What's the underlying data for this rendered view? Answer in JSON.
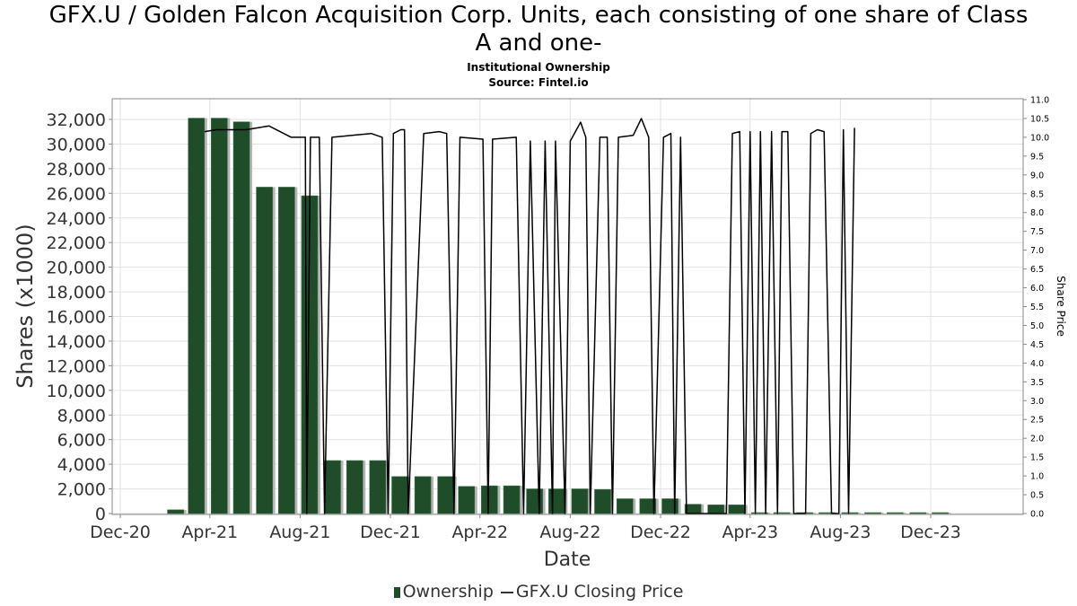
{
  "title_line1": "GFX.U / Golden Falcon Acquisition Corp. Units, each consisting of one share of Class",
  "title_line2": "A and one-",
  "subtitle1": "Institutional Ownership",
  "subtitle2": "Source: Fintel.io",
  "legend": {
    "ownership": "Ownership",
    "price": "GFX.U Closing Price"
  },
  "colors": {
    "bar": "#1f4d2a",
    "bar_shadow": "#b5b5b5",
    "line": "#000000",
    "grid": "#e2e2e2"
  },
  "chart_data": {
    "type": "bar",
    "xlabel": "Date",
    "ylabel": "Shares (x1000)",
    "y2label": "Share Price",
    "ylim": [
      0,
      33800
    ],
    "y2lim": [
      0,
      11.0
    ],
    "grid": true,
    "legend_position": "bottom",
    "x_ticks": [
      "Dec-20",
      "Apr-21",
      "Aug-21",
      "Dec-21",
      "Apr-22",
      "Aug-22",
      "Dec-22",
      "Apr-23",
      "Aug-23",
      "Dec-23"
    ],
    "y_ticks": [
      "0",
      "2,000",
      "4,000",
      "6,000",
      "8,000",
      "10,000",
      "12,000",
      "14,000",
      "16,000",
      "18,000",
      "20,000",
      "22,000",
      "24,000",
      "26,000",
      "28,000",
      "30,000",
      "32,000"
    ],
    "y2_ticks": [
      "0.0",
      "0.5",
      "1.0",
      "1.5",
      "2.0",
      "2.5",
      "3.0",
      "3.5",
      "4.0",
      "4.5",
      "5.0",
      "5.5",
      "6.0",
      "6.5",
      "7.0",
      "7.5",
      "8.0",
      "8.5",
      "9.0",
      "9.5",
      "10.0",
      "10.5",
      "11.0"
    ],
    "series": [
      {
        "name": "Ownership",
        "type": "bar",
        "dates": [
          "2021-02-15",
          "2021-03-15",
          "2021-04-15",
          "2021-05-15",
          "2021-06-15",
          "2021-07-15",
          "2021-08-15",
          "2021-09-15",
          "2021-10-15",
          "2021-11-15",
          "2021-12-15",
          "2022-01-15",
          "2022-02-15",
          "2022-03-15",
          "2022-04-15",
          "2022-05-15",
          "2022-06-15",
          "2022-07-15",
          "2022-08-15",
          "2022-09-15",
          "2022-10-15",
          "2022-11-15",
          "2022-12-15",
          "2023-01-15",
          "2023-02-15",
          "2023-03-15",
          "2023-04-15",
          "2023-05-15",
          "2023-06-15",
          "2023-07-15",
          "2023-08-15",
          "2023-09-15",
          "2023-10-15",
          "2023-11-15",
          "2023-12-15"
        ],
        "values": [
          300,
          32100,
          32100,
          31800,
          26500,
          26500,
          25800,
          4300,
          4300,
          4300,
          3000,
          3000,
          3000,
          2200,
          2250,
          2250,
          2000,
          2000,
          2000,
          1950,
          1200,
          1200,
          1200,
          750,
          700,
          700,
          60,
          60,
          60,
          60,
          60,
          60,
          60,
          60,
          60
        ]
      },
      {
        "name": "GFX.U Closing Price",
        "type": "line",
        "points": [
          [
            "2021-03-25",
            10.15
          ],
          [
            "2021-04-10",
            10.2
          ],
          [
            "2021-05-20",
            10.2
          ],
          [
            "2021-06-20",
            10.3
          ],
          [
            "2021-07-20",
            10.0
          ],
          [
            "2021-08-08",
            10.0
          ],
          [
            "2021-08-10",
            0.0
          ],
          [
            "2021-08-15",
            10.0
          ],
          [
            "2021-08-27",
            10.0
          ],
          [
            "2021-09-03",
            0.0
          ],
          [
            "2021-09-13",
            10.0
          ],
          [
            "2021-10-10",
            10.05
          ],
          [
            "2021-11-05",
            10.1
          ],
          [
            "2021-11-20",
            10.0
          ],
          [
            "2021-11-28",
            0.0
          ],
          [
            "2021-12-05",
            10.1
          ],
          [
            "2021-12-15",
            10.2
          ],
          [
            "2021-12-20",
            10.2
          ],
          [
            "2021-12-25",
            0.0
          ],
          [
            "2022-01-15",
            10.1
          ],
          [
            "2022-02-05",
            10.15
          ],
          [
            "2022-02-15",
            10.1
          ],
          [
            "2022-02-25",
            0.0
          ],
          [
            "2022-03-05",
            10.0
          ],
          [
            "2022-04-05",
            9.95
          ],
          [
            "2022-04-12",
            0.0
          ],
          [
            "2022-04-18",
            9.95
          ],
          [
            "2022-05-20",
            10.0
          ],
          [
            "2022-05-30",
            0.0
          ],
          [
            "2022-06-08",
            9.9
          ],
          [
            "2022-06-20",
            0.0
          ],
          [
            "2022-06-28",
            9.9
          ],
          [
            "2022-07-08",
            0.0
          ],
          [
            "2022-07-12",
            9.9
          ],
          [
            "2022-07-25",
            0.0
          ],
          [
            "2022-08-01",
            9.9
          ],
          [
            "2022-08-15",
            10.4
          ],
          [
            "2022-08-22",
            10.0
          ],
          [
            "2022-08-28",
            0.0
          ],
          [
            "2022-09-10",
            10.0
          ],
          [
            "2022-09-20",
            10.0
          ],
          [
            "2022-09-27",
            0.0
          ],
          [
            "2022-10-05",
            10.0
          ],
          [
            "2022-10-25",
            10.05
          ],
          [
            "2022-11-05",
            10.5
          ],
          [
            "2022-11-15",
            10.0
          ],
          [
            "2022-11-22",
            0.0
          ],
          [
            "2022-12-05",
            10.0
          ],
          [
            "2022-12-15",
            10.1
          ],
          [
            "2022-12-20",
            0.0
          ],
          [
            "2022-12-28",
            10.0
          ],
          [
            "2023-01-05",
            0.0
          ],
          [
            "2023-02-28",
            0.0
          ],
          [
            "2023-03-08",
            10.1
          ],
          [
            "2023-03-18",
            10.15
          ],
          [
            "2023-03-25",
            0.0
          ],
          [
            "2023-04-01",
            10.15
          ],
          [
            "2023-04-08",
            0.0
          ],
          [
            "2023-04-15",
            10.15
          ],
          [
            "2023-04-22",
            0.0
          ],
          [
            "2023-04-30",
            10.15
          ],
          [
            "2023-05-08",
            0.0
          ],
          [
            "2023-05-14",
            10.15
          ],
          [
            "2023-05-22",
            10.15
          ],
          [
            "2023-05-30",
            0.0
          ],
          [
            "2023-06-15",
            0.0
          ],
          [
            "2023-06-22",
            10.1
          ],
          [
            "2023-07-01",
            10.2
          ],
          [
            "2023-07-10",
            10.15
          ],
          [
            "2023-07-20",
            0.0
          ],
          [
            "2023-07-30",
            0.0
          ],
          [
            "2023-08-05",
            10.2
          ],
          [
            "2023-08-12",
            0.0
          ],
          [
            "2023-08-20",
            10.25
          ]
        ]
      }
    ]
  }
}
